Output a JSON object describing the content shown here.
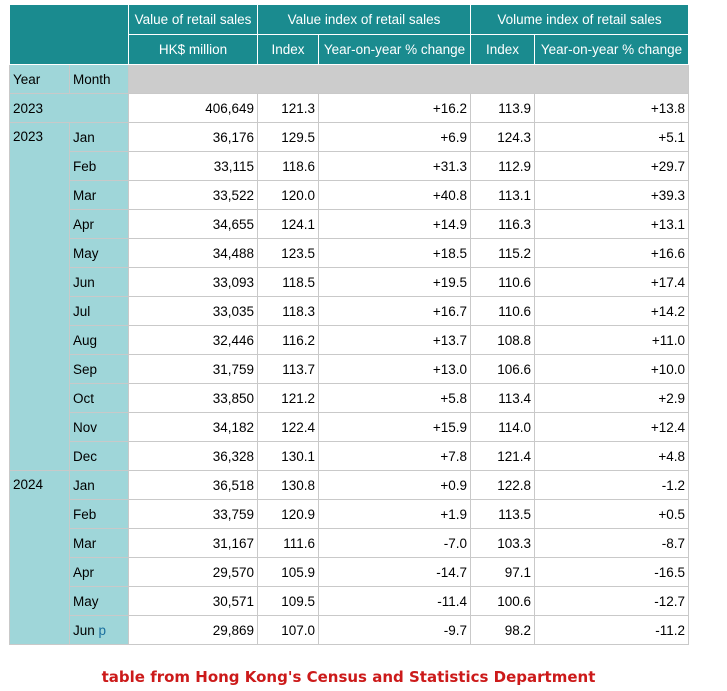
{
  "headers": {
    "value_sales": "Value of retail sales",
    "value_index": "Value index of retail sales",
    "volume_index": "Volume index of retail sales",
    "hk_million": "HK$ million",
    "index": "Index",
    "yoy": "Year-on-year % change",
    "year": "Year",
    "month": "Month"
  },
  "annual": {
    "year": "2023",
    "value": "406,649",
    "value_index": "121.3",
    "value_yoy": "+16.2",
    "volume_index": "113.9",
    "volume_yoy": "+13.8"
  },
  "groups": [
    {
      "year": "2023",
      "rows": [
        {
          "month": "Jan",
          "value": "36,176",
          "vi": "129.5",
          "vy": "+6.9",
          "qi": "124.3",
          "qy": "+5.1"
        },
        {
          "month": "Feb",
          "value": "33,115",
          "vi": "118.6",
          "vy": "+31.3",
          "qi": "112.9",
          "qy": "+29.7"
        },
        {
          "month": "Mar",
          "value": "33,522",
          "vi": "120.0",
          "vy": "+40.8",
          "qi": "113.1",
          "qy": "+39.3"
        },
        {
          "month": "Apr",
          "value": "34,655",
          "vi": "124.1",
          "vy": "+14.9",
          "qi": "116.3",
          "qy": "+13.1"
        },
        {
          "month": "May",
          "value": "34,488",
          "vi": "123.5",
          "vy": "+18.5",
          "qi": "115.2",
          "qy": "+16.6"
        },
        {
          "month": "Jun",
          "value": "33,093",
          "vi": "118.5",
          "vy": "+19.5",
          "qi": "110.6",
          "qy": "+17.4"
        },
        {
          "month": "Jul",
          "value": "33,035",
          "vi": "118.3",
          "vy": "+16.7",
          "qi": "110.6",
          "qy": "+14.2"
        },
        {
          "month": "Aug",
          "value": "32,446",
          "vi": "116.2",
          "vy": "+13.7",
          "qi": "108.8",
          "qy": "+11.0"
        },
        {
          "month": "Sep",
          "value": "31,759",
          "vi": "113.7",
          "vy": "+13.0",
          "qi": "106.6",
          "qy": "+10.0"
        },
        {
          "month": "Oct",
          "value": "33,850",
          "vi": "121.2",
          "vy": "+5.8",
          "qi": "113.4",
          "qy": "+2.9"
        },
        {
          "month": "Nov",
          "value": "34,182",
          "vi": "122.4",
          "vy": "+15.9",
          "qi": "114.0",
          "qy": "+12.4"
        },
        {
          "month": "Dec",
          "value": "36,328",
          "vi": "130.1",
          "vy": "+7.8",
          "qi": "121.4",
          "qy": "+4.8"
        }
      ]
    },
    {
      "year": "2024",
      "rows": [
        {
          "month": "Jan",
          "value": "36,518",
          "vi": "130.8",
          "vy": "+0.9",
          "qi": "122.8",
          "qy": "-1.2"
        },
        {
          "month": "Feb",
          "value": "33,759",
          "vi": "120.9",
          "vy": "+1.9",
          "qi": "113.5",
          "qy": "+0.5"
        },
        {
          "month": "Mar",
          "value": "31,167",
          "vi": "111.6",
          "vy": "-7.0",
          "qi": "103.3",
          "qy": "-8.7"
        },
        {
          "month": "Apr",
          "value": "29,570",
          "vi": "105.9",
          "vy": "-14.7",
          "qi": "97.1",
          "qy": "-16.5"
        },
        {
          "month": "May",
          "value": "30,571",
          "vi": "109.5",
          "vy": "-11.4",
          "qi": "100.6",
          "qy": "-12.7"
        },
        {
          "month": "Jun",
          "flag": "p",
          "value": "29,869",
          "vi": "107.0",
          "vy": "-9.7",
          "qi": "98.2",
          "qy": "-11.2"
        }
      ]
    }
  ],
  "caption": "table from Hong Kong's Census and Statistics Department",
  "colors": {
    "header_bg": "#1a8b8f",
    "label_bg": "#9fd6d9",
    "grey_band": "#cccccc",
    "caption": "#cc1a1a"
  }
}
